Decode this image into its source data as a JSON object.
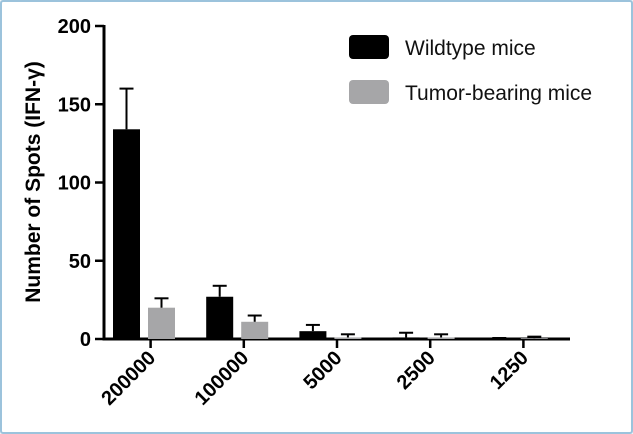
{
  "chart_data": {
    "type": "bar",
    "title": "",
    "xlabel": "",
    "ylabel": "Number of Spots (IFN-γ)",
    "ylim": [
      0,
      200
    ],
    "yticks": [
      "0",
      "50",
      "100",
      "150",
      "200"
    ],
    "categories": [
      "200000",
      "100000",
      "5000",
      "2500",
      "1250"
    ],
    "series": [
      {
        "name": "Wildtype mice",
        "color": "#000000",
        "values": [
          134,
          27,
          5,
          1,
          0
        ],
        "errors": [
          26,
          7,
          4,
          3,
          0
        ]
      },
      {
        "name": "Tumor-bearing mice",
        "color": "#a6a6a8",
        "values": [
          20,
          11,
          1,
          1,
          0.5
        ],
        "errors": [
          6,
          4,
          2,
          2,
          1
        ]
      }
    ],
    "legend_position": "top-right",
    "grid": false
  }
}
